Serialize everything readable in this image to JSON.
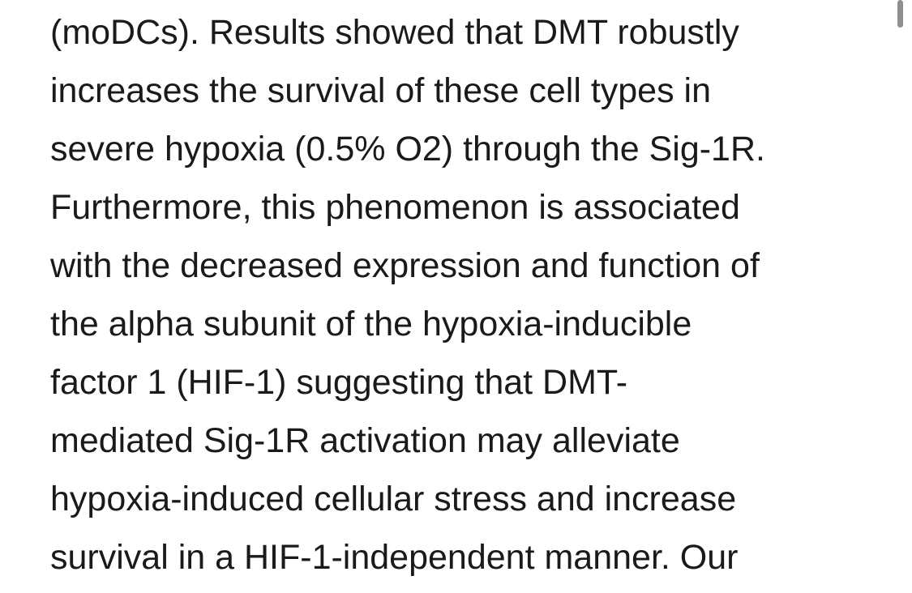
{
  "article": {
    "lines": [
      "(moDCs). Results showed that DMT robustly",
      "increases the survival of these cell types in",
      "severe hypoxia (0.5% O2) through the Sig-1R.",
      "Furthermore, this phenomenon is associated",
      "with the decreased expression and function of",
      "the alpha subunit of the hypoxia-inducible",
      "factor 1 (HIF-1) suggesting that DMT-",
      "mediated Sig-1R activation may alleviate",
      "hypoxia-induced cellular stress and increase",
      "survival in a HIF-1-independent manner. Our"
    ]
  },
  "colors": {
    "text": "#1a1a1a",
    "background": "#ffffff",
    "scrollbar": "#8e8e93"
  }
}
